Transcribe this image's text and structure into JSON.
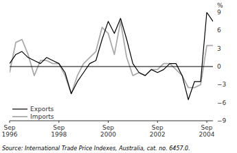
{
  "chart_data": {
    "type": "line",
    "categories": [
      "Sep\n1996",
      null,
      null,
      null,
      null,
      null,
      null,
      null,
      "Sep\n1998",
      null,
      null,
      null,
      null,
      null,
      null,
      null,
      "Sep\n2000",
      null,
      null,
      null,
      null,
      null,
      null,
      null,
      "Sep\n2002",
      null,
      null,
      null,
      null,
      null,
      null,
      null,
      "Sep\n2004",
      null
    ],
    "series": [
      {
        "name": "Exports",
        "color": "#000000",
        "values": [
          0.5,
          2.0,
          2.5,
          1.5,
          1.0,
          0.5,
          1.5,
          1.0,
          0.5,
          -1.0,
          -4.5,
          -2.5,
          -1.0,
          0.5,
          1.0,
          4.5,
          7.5,
          5.5,
          8.0,
          4.5,
          0.5,
          -1.0,
          -1.5,
          -0.5,
          -1.0,
          -0.5,
          0.5,
          0.5,
          -1.5,
          -5.5,
          -2.5,
          -2.5,
          9.0,
          7.5
        ]
      },
      {
        "name": "Imports",
        "color": "#aaaaaa",
        "values": [
          -1.0,
          4.0,
          4.5,
          2.0,
          -1.5,
          1.0,
          1.0,
          0.5,
          0.5,
          -1.5,
          -4.5,
          -1.5,
          0.5,
          1.5,
          2.5,
          6.5,
          5.5,
          2.0,
          7.5,
          1.5,
          -1.5,
          -1.0,
          -1.5,
          -0.5,
          -0.5,
          0.5,
          0.5,
          -0.5,
          -1.5,
          -3.5,
          -3.5,
          -3.0,
          3.5,
          3.5
        ]
      }
    ],
    "ylabel": "%",
    "source": "Source: International Trade Price Indexes, Australia, cat. no. 6457.0.",
    "ylim": [
      -9,
      9
    ],
    "yticks": [
      {
        "value": -9,
        "label": "−9"
      },
      {
        "value": -6,
        "label": "−6"
      },
      {
        "value": -3,
        "label": "−3"
      },
      0,
      3,
      6,
      9
    ],
    "grid": false,
    "legend": "lower left"
  }
}
